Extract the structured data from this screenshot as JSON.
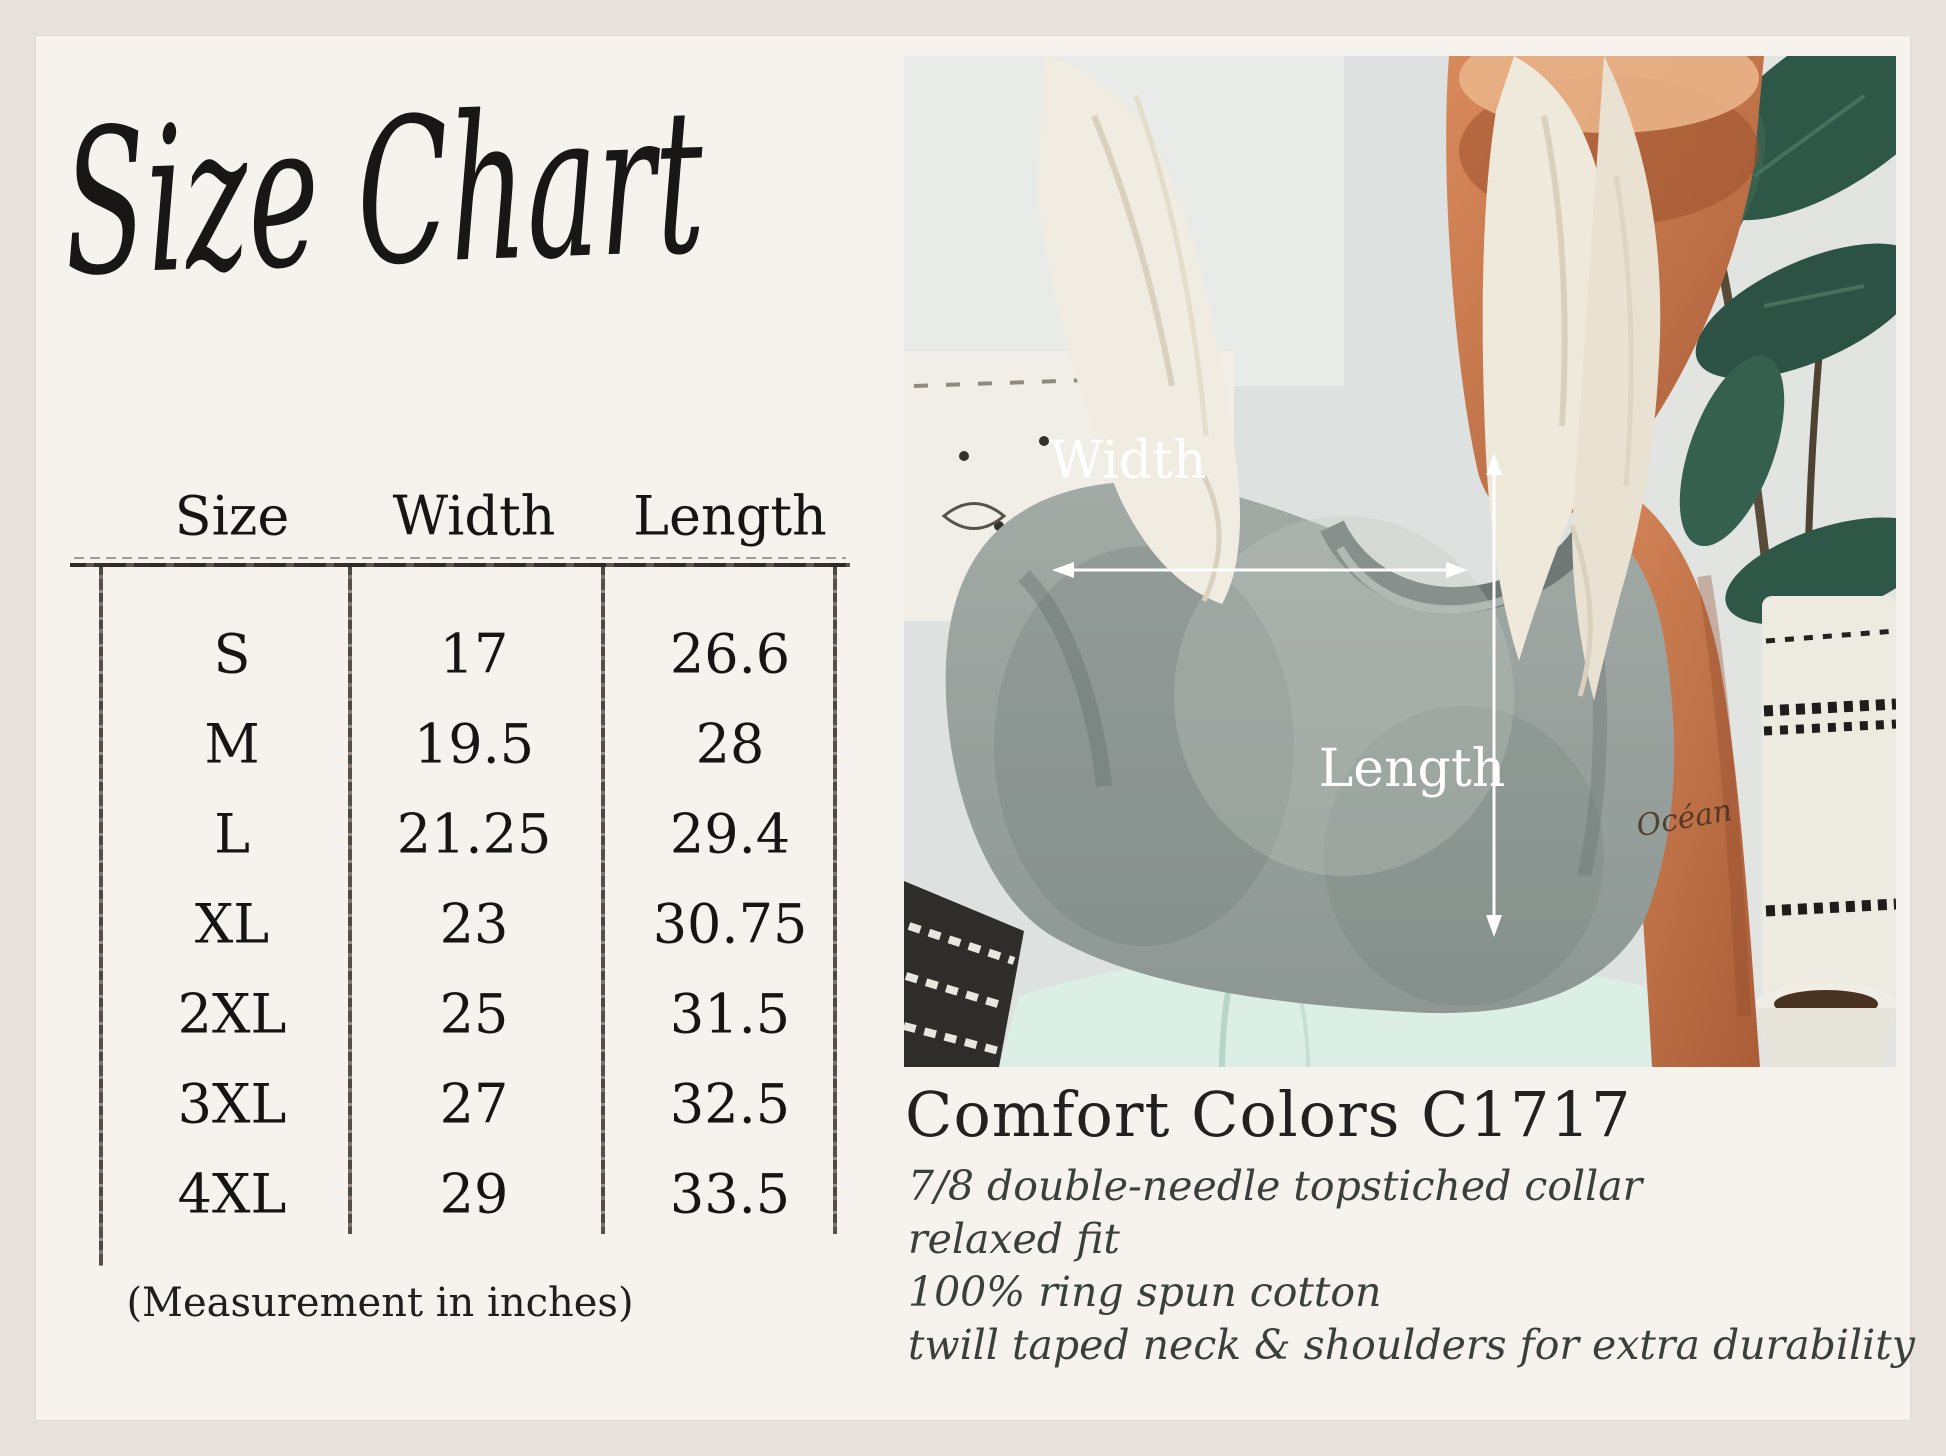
{
  "title": {
    "text": "Size Chart"
  },
  "size_table": {
    "headers": [
      "Size",
      "Width",
      "Length"
    ],
    "rows": [
      [
        "S",
        "17",
        "26.6"
      ],
      [
        "M",
        "19.5",
        "28"
      ],
      [
        "L",
        "21.25",
        "29.4"
      ],
      [
        "XL",
        "23",
        "30.75"
      ],
      [
        "2XL",
        "25",
        "31.5"
      ],
      [
        "3XL",
        "27",
        "32.5"
      ],
      [
        "4XL",
        "29",
        "33.5"
      ]
    ],
    "note": "(Measurement in inches)"
  },
  "photo": {
    "width_label": "Width",
    "length_label": "Length",
    "tattoo_text": "Océan"
  },
  "product": {
    "heading": "Comfort Colors C1717",
    "details": [
      "7/8 double-needle topstiched collar",
      "relaxed fit",
      "100% ring spun cotton",
      "twill taped neck & shoulders for extra durability"
    ]
  },
  "colors": {
    "frame": "#e8e2dc",
    "panel": "#f6f2ee",
    "ink": "#1d1b19",
    "annotation_white": "#ffffff",
    "shirt_gray": "#9aa39f",
    "plant_green": "#2f5748",
    "skin_tan": "#c47b50",
    "jeans_mint": "#dcefe7"
  }
}
